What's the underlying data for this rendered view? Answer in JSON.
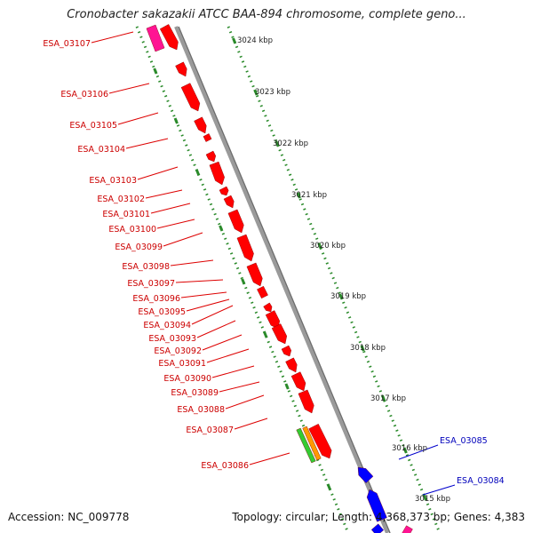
{
  "title": "Cronobacter sakazakii ATCC BAA-894 chromosome, complete geno...",
  "footer": {
    "accession": "Accession: NC_009778",
    "topology": "Topology: circular; Length: 4,368,373 bp; Genes: 4,383"
  },
  "colors": {
    "gene_forward": "#ff0000",
    "gene_reverse": "#0000ff",
    "gene_magenta": "#ff1493",
    "gene_green": "#33cc33",
    "gene_orange": "#ff9900",
    "backbone": "#888888",
    "ruler": "#2a8a2a",
    "label_forward": "#cc0000",
    "label_reverse": "#0000bb"
  },
  "ruler_labels": [
    "3024 kbp",
    "3023 kbp",
    "3022 kbp",
    "3021 kbp",
    "3020 kbp",
    "3019 kbp",
    "3018 kbp",
    "3017 kbp",
    "3016 kbp",
    "3015 kbp"
  ],
  "gene_labels_left": [
    "ESA_03107",
    "ESA_03106",
    "ESA_03105",
    "ESA_03104",
    "ESA_03103",
    "ESA_03102",
    "ESA_03101",
    "ESA_03100",
    "ESA_03099",
    "ESA_03098",
    "ESA_03097",
    "ESA_03096",
    "ESA_03095",
    "ESA_03094",
    "ESA_03093",
    "ESA_03092",
    "ESA_03091",
    "ESA_03090",
    "ESA_03089",
    "ESA_03088",
    "ESA_03087",
    "ESA_03086"
  ],
  "gene_labels_right": [
    "ESA_03085",
    "ESA_03084"
  ]
}
